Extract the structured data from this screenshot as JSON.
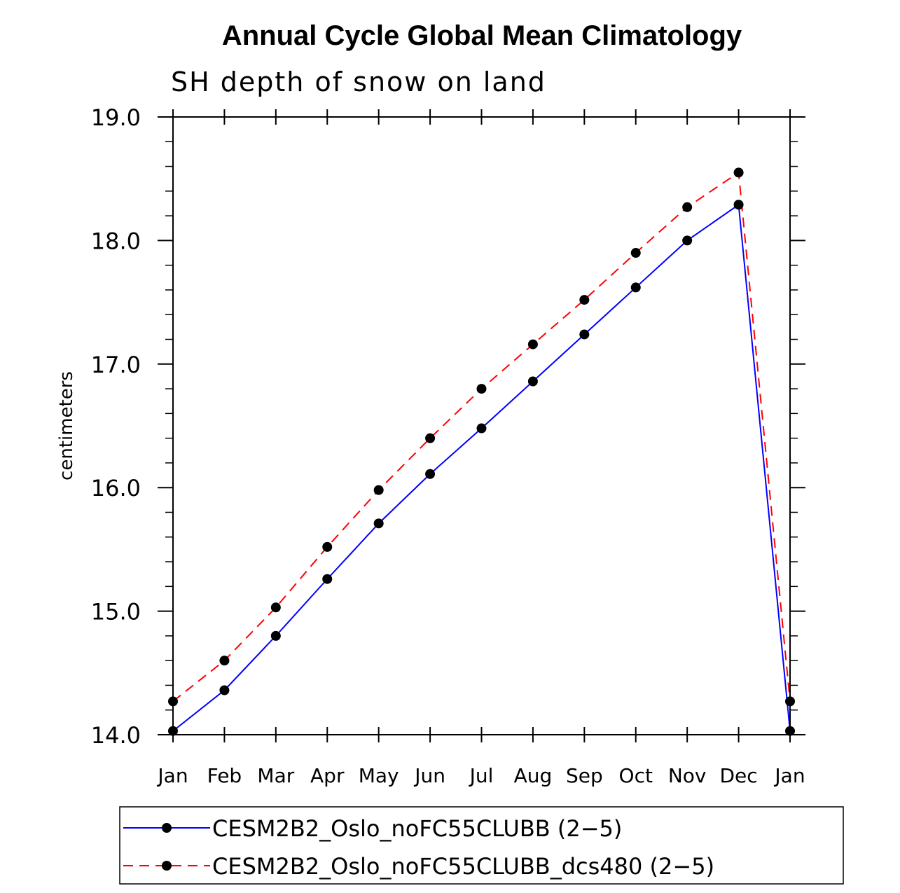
{
  "chart_data": {
    "type": "line",
    "title": "Annual Cycle Global Mean Climatology",
    "subtitle": "SH depth of snow on land",
    "xlabel": "",
    "ylabel": "centimeters",
    "categories": [
      "Jan",
      "Feb",
      "Mar",
      "Apr",
      "May",
      "Jun",
      "Jul",
      "Aug",
      "Sep",
      "Oct",
      "Nov",
      "Dec",
      "Jan"
    ],
    "ylim": [
      14.0,
      19.0
    ],
    "yticks": [
      "14.0",
      "15.0",
      "16.0",
      "17.0",
      "18.0",
      "19.0"
    ],
    "series": [
      {
        "name": "CESM2B2_Oslo_noFC55CLUBB (2−5)",
        "color": "#0000ff",
        "dash": "solid",
        "marker": "filled-circle",
        "values": [
          14.03,
          14.36,
          14.8,
          15.26,
          15.71,
          16.11,
          16.48,
          16.86,
          17.24,
          17.62,
          18.0,
          18.29,
          14.03
        ]
      },
      {
        "name": "CESM2B2_Oslo_noFC55CLUBB_dcs480 (2−5)",
        "color": "#ff0000",
        "dash": "dashed",
        "marker": "filled-circle",
        "values": [
          14.27,
          14.6,
          15.03,
          15.52,
          15.98,
          16.4,
          16.8,
          17.16,
          17.52,
          17.9,
          18.27,
          18.55,
          14.27
        ]
      }
    ],
    "legend_position": "bottom"
  }
}
